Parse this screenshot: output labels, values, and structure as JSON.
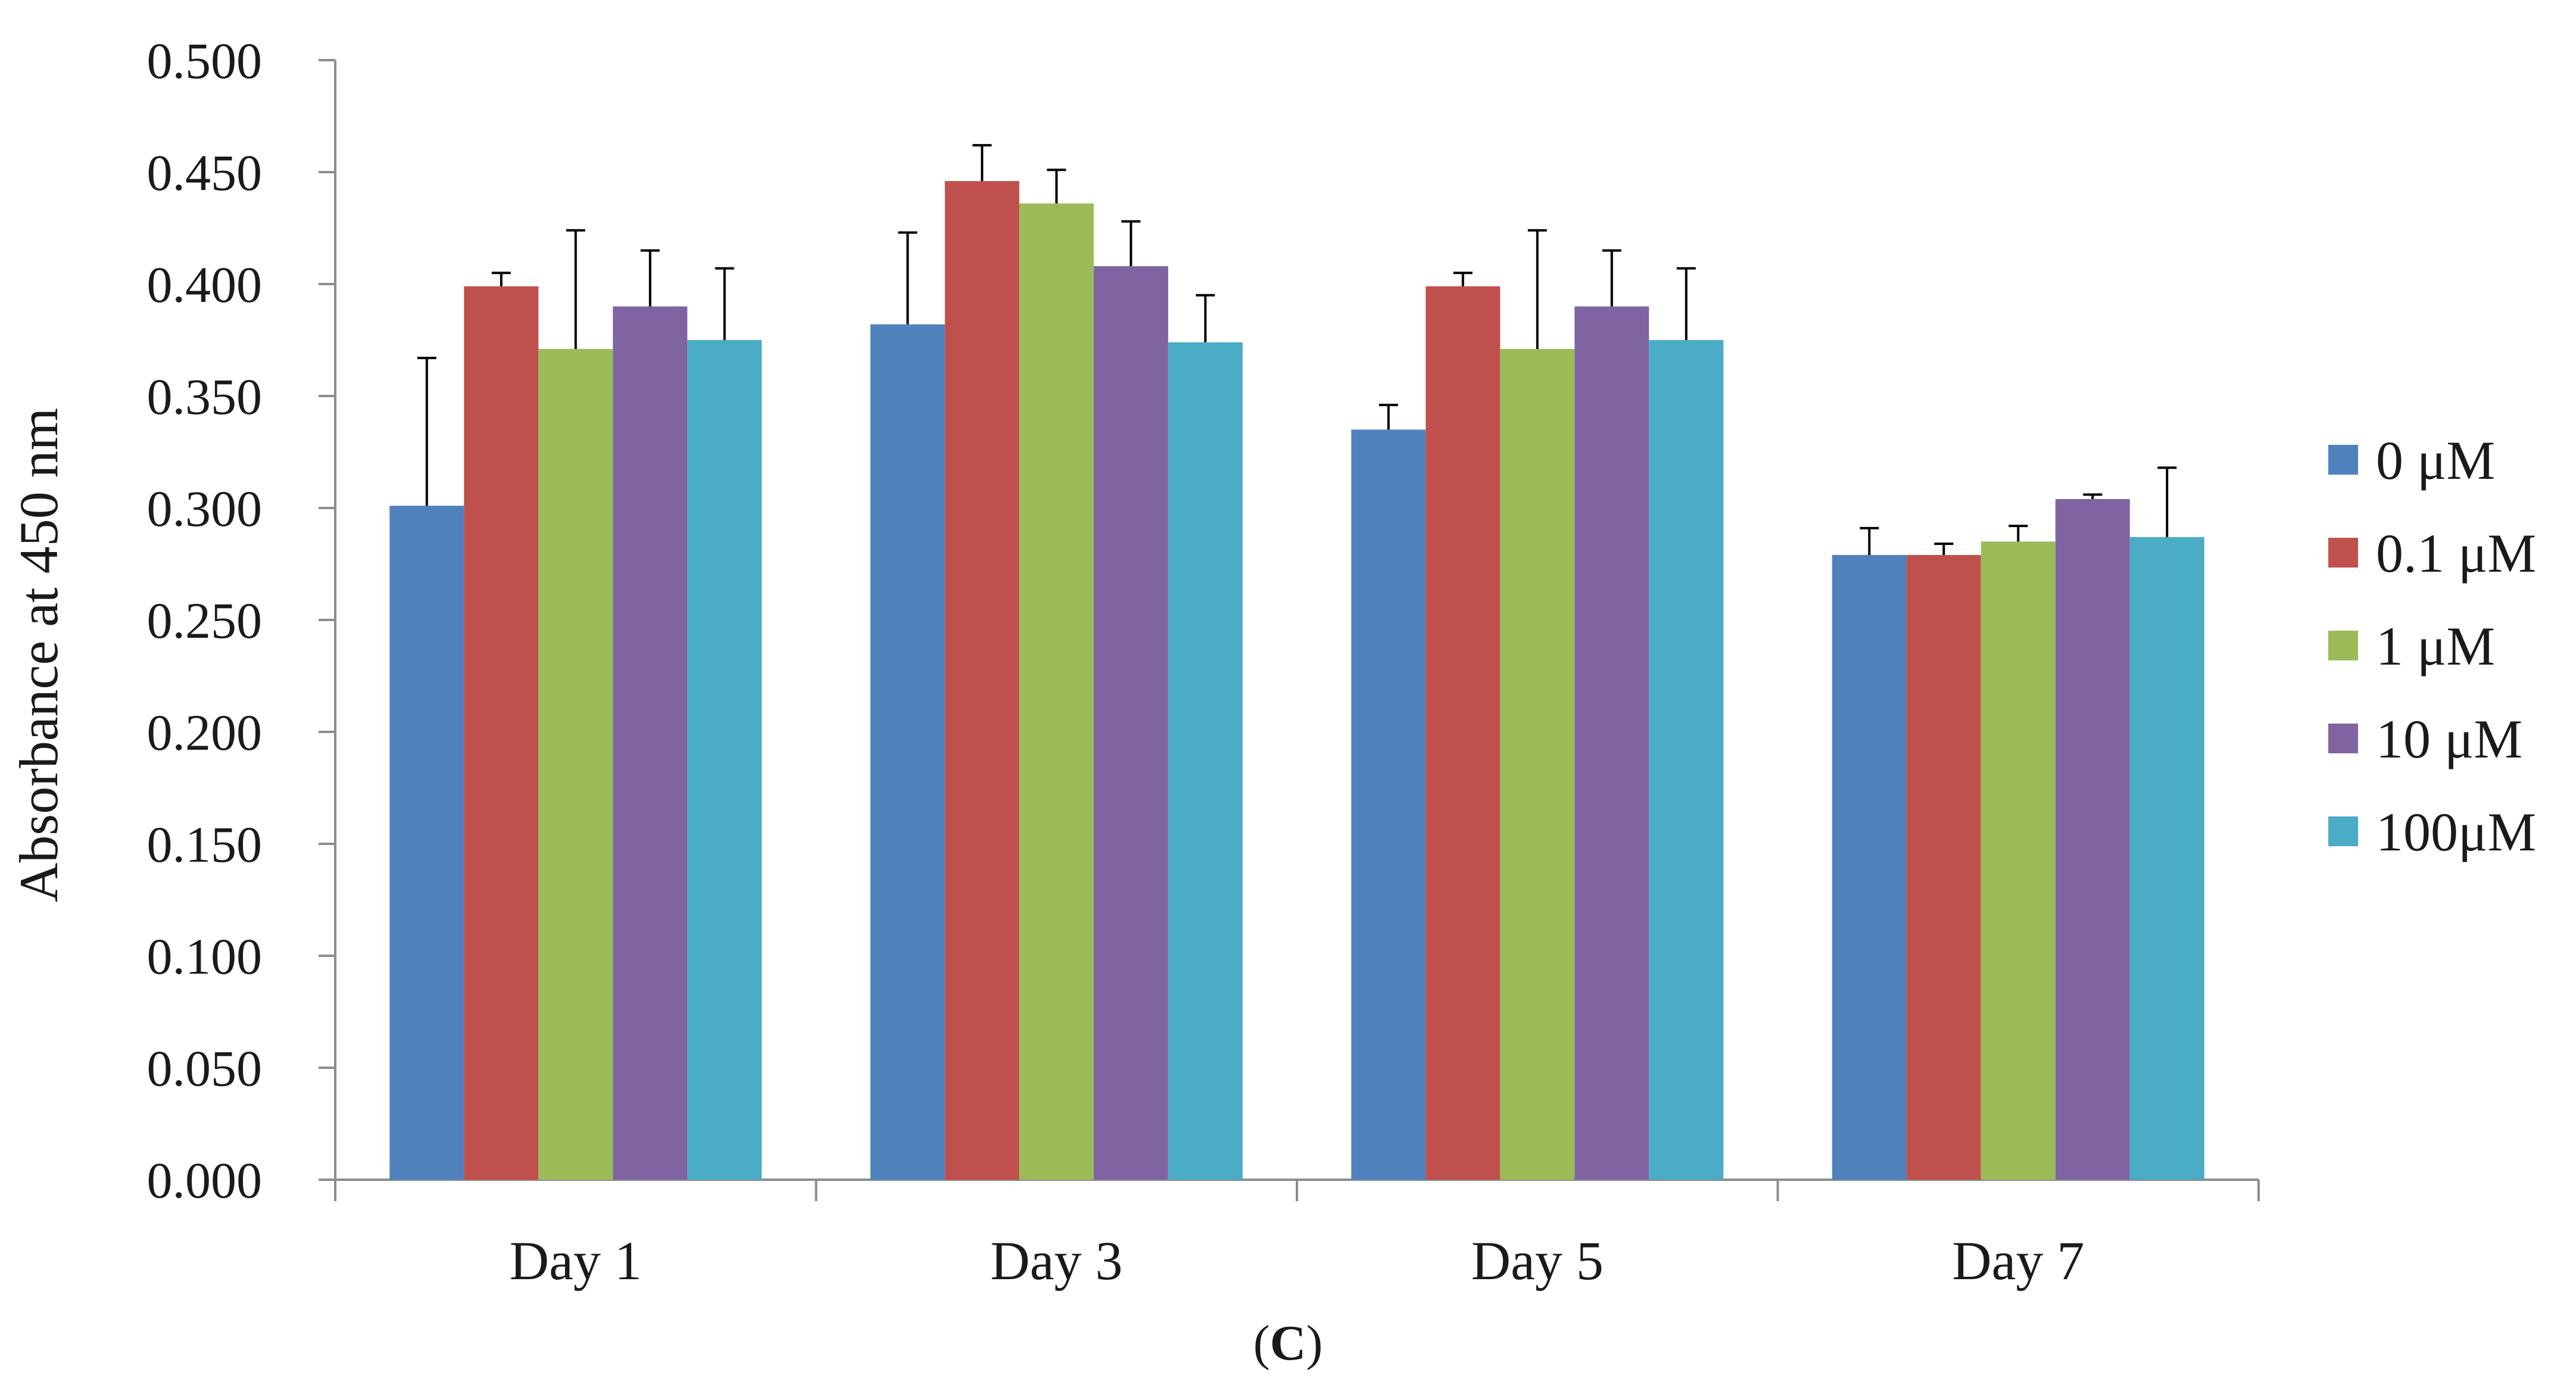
{
  "chart_data": {
    "type": "bar",
    "title": "",
    "xlabel": "",
    "ylabel": "Absorbance at 450 nm",
    "ylim": [
      0,
      0.5
    ],
    "yticks": [
      "0.000",
      "0.050",
      "0.100",
      "0.150",
      "0.200",
      "0.250",
      "0.300",
      "0.350",
      "0.400",
      "0.450",
      "0.500"
    ],
    "categories": [
      "Day 1",
      "Day 3",
      "Day 5",
      "Day 7"
    ],
    "series": [
      {
        "name": "0 μM",
        "color": "#4f81bd",
        "values": [
          0.301,
          0.382,
          0.335,
          0.279
        ],
        "errors": [
          0.066,
          0.041,
          0.011,
          0.012
        ]
      },
      {
        "name": "0.1 μM",
        "color": "#c0504d",
        "values": [
          0.399,
          0.446,
          0.399,
          0.279
        ],
        "errors": [
          0.006,
          0.016,
          0.006,
          0.005
        ]
      },
      {
        "name": "1 μM",
        "color": "#9bbb59",
        "values": [
          0.371,
          0.436,
          0.371,
          0.285
        ],
        "errors": [
          0.053,
          0.015,
          0.053,
          0.007
        ]
      },
      {
        "name": "10 μM",
        "color": "#8064a2",
        "values": [
          0.39,
          0.408,
          0.39,
          0.304
        ],
        "errors": [
          0.025,
          0.02,
          0.025,
          0.002
        ]
      },
      {
        "name": "100μM",
        "color": "#4bacc6",
        "values": [
          0.375,
          0.374,
          0.375,
          0.287
        ],
        "errors": [
          0.032,
          0.021,
          0.032,
          0.031
        ]
      }
    ],
    "legend_position": "right",
    "grid": false
  },
  "panel_label": {
    "open": "(",
    "letter": "C",
    "close": ")"
  }
}
